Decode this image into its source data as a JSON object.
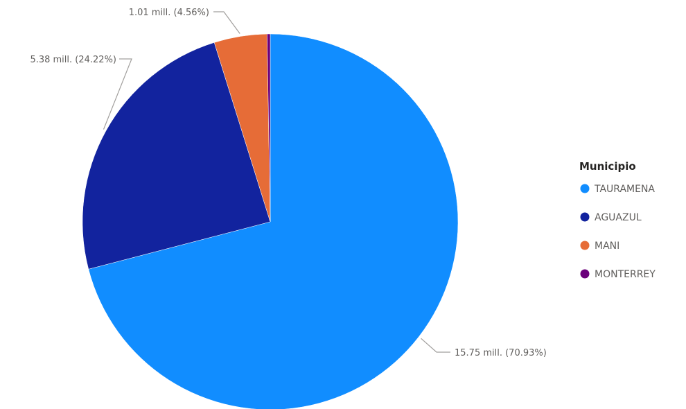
{
  "chart_data": {
    "type": "pie",
    "legend_title": "Municipio",
    "legend_position": "right",
    "start_angle_deg": 0,
    "direction": "clockwise",
    "slices": [
      {
        "label": "TAURAMENA",
        "value": 15.75,
        "percent": 70.93,
        "color": "#118DFF",
        "data_label": "15.75 mill. (70.93%)"
      },
      {
        "label": "AGUAZUL",
        "value": 5.38,
        "percent": 24.22,
        "color": "#12239E",
        "data_label": "5.38 mill. (24.22%)"
      },
      {
        "label": "MANI",
        "value": 1.01,
        "percent": 4.56,
        "color": "#E66C37",
        "data_label": "1.01 mill. (4.56%)"
      },
      {
        "label": "MONTERREY",
        "value": 0.06,
        "percent": 0.29,
        "color": "#6B007B",
        "data_label": ""
      }
    ]
  }
}
